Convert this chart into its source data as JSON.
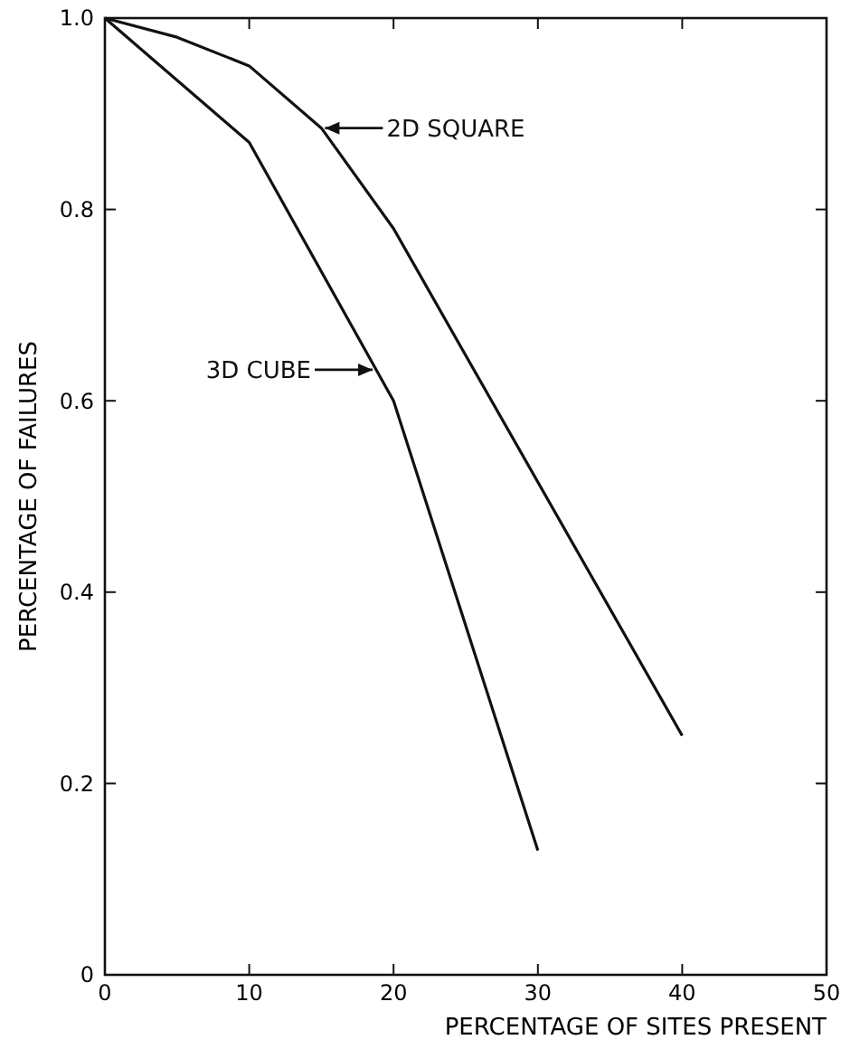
{
  "chart_data": {
    "type": "line",
    "xlabel": "PERCENTAGE OF SITES PRESENT",
    "ylabel": "PERCENTAGE OF FAILURES",
    "xlim": [
      0,
      50
    ],
    "xticks": [
      0,
      10,
      20,
      30,
      40,
      50
    ],
    "ylim": [
      0,
      1
    ],
    "yticks": [
      0,
      0.2,
      0.4,
      0.6,
      0.8,
      {
        "value": 1,
        "label": "1.0"
      }
    ],
    "grid": false,
    "legend": "top left",
    "marker": "none",
    "line_style": "solid",
    "series": [
      {
        "name": "2D SQUARE",
        "color": "#111111",
        "x": [
          0,
          5,
          10,
          15,
          20,
          40
        ],
        "values": [
          1,
          0.98,
          0.95,
          0.885,
          0.78,
          0.25
        ]
      },
      {
        "name": "3D CUBE",
        "color": "#111111",
        "x": [
          0,
          10,
          20,
          30
        ],
        "values": [
          1,
          0.87,
          0.6,
          0.13
        ]
      }
    ]
  }
}
